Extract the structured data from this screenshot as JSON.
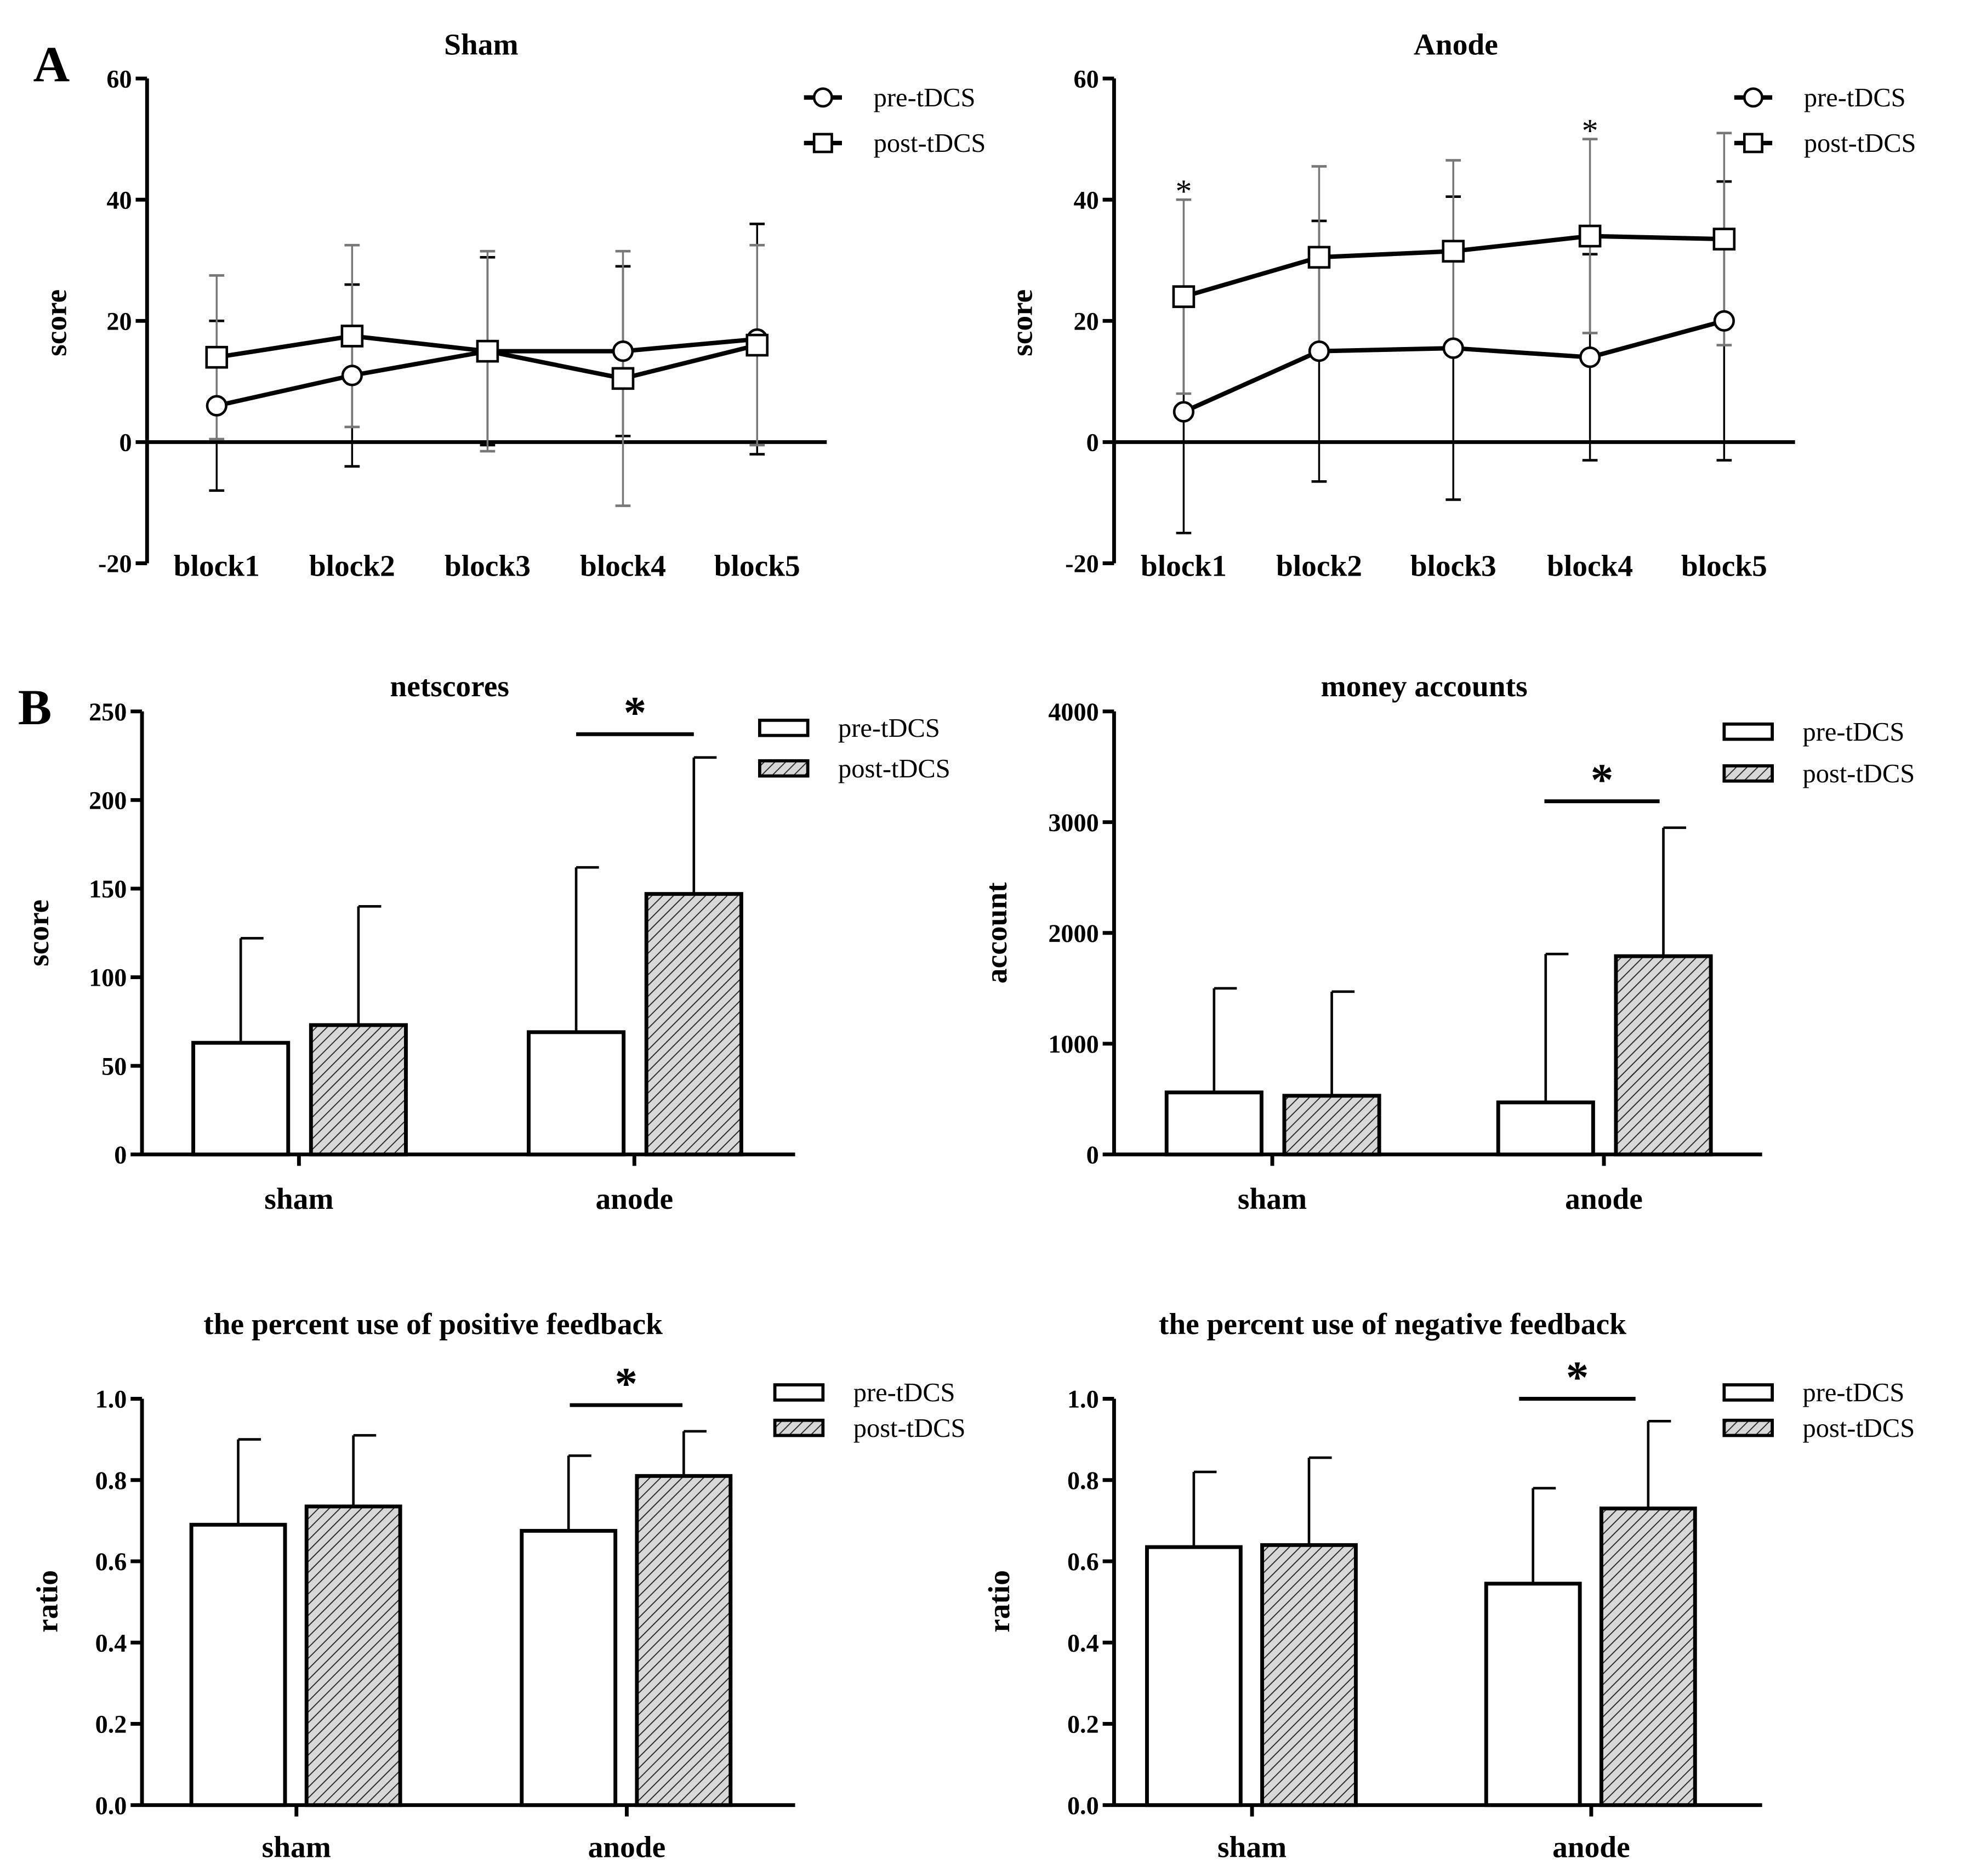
{
  "panel_labels": [
    "A",
    "B"
  ],
  "chart_data": [
    {
      "type": "line",
      "title": "Sham",
      "xlabel": "",
      "ylabel": "score",
      "categories": [
        "block1",
        "block2",
        "block3",
        "block4",
        "block5"
      ],
      "ylim": [
        -20,
        60
      ],
      "yticks": [
        -20,
        0,
        20,
        40,
        60
      ],
      "legend_position": "top-right",
      "series": [
        {
          "name": "pre-tDCS",
          "marker": "circle",
          "values": [
            6,
            11,
            15,
            15,
            17
          ],
          "errors": [
            14,
            15,
            15.5,
            14,
            19
          ]
        },
        {
          "name": "post-tDCS",
          "marker": "square",
          "values": [
            14,
            17.5,
            15,
            10.5,
            16
          ],
          "errors": [
            13.5,
            15,
            16.5,
            21,
            16.5
          ]
        }
      ],
      "annotations": []
    },
    {
      "type": "line",
      "title": "Anode",
      "xlabel": "",
      "ylabel": "score",
      "categories": [
        "block1",
        "block2",
        "block3",
        "block4",
        "block5"
      ],
      "ylim": [
        -20,
        60
      ],
      "yticks": [
        -20,
        0,
        20,
        40,
        60
      ],
      "legend_position": "top-right",
      "series": [
        {
          "name": "pre-tDCS",
          "marker": "circle",
          "values": [
            5,
            15,
            15.5,
            14,
            20
          ],
          "errors": [
            20,
            21.5,
            25,
            17,
            23
          ]
        },
        {
          "name": "post-tDCS",
          "marker": "square",
          "values": [
            24,
            30.5,
            31.5,
            34,
            33.5
          ],
          "errors": [
            16,
            15,
            15,
            16,
            17.5
          ]
        }
      ],
      "annotations": [
        {
          "text": "*",
          "category": "block1"
        },
        {
          "text": "*",
          "category": "block4"
        }
      ]
    },
    {
      "type": "bar",
      "title": "netscores",
      "xlabel": "",
      "ylabel": "score",
      "categories": [
        "sham",
        "anode"
      ],
      "ylim": [
        0,
        250
      ],
      "yticks": [
        0,
        50,
        100,
        150,
        200,
        250
      ],
      "legend_position": "top-right",
      "series": [
        {
          "name": "pre-tDCS",
          "values": [
            63,
            69
          ],
          "errors": [
            59,
            93
          ]
        },
        {
          "name": "post-tDCS",
          "values": [
            73,
            147
          ],
          "errors": [
            67,
            77
          ]
        }
      ],
      "significance": {
        "text": "*",
        "category": "anode"
      }
    },
    {
      "type": "bar",
      "title": "money accounts",
      "xlabel": "",
      "ylabel": "account",
      "categories": [
        "sham",
        "anode"
      ],
      "ylim": [
        0,
        4000
      ],
      "yticks": [
        0,
        1000,
        2000,
        3000,
        4000
      ],
      "legend_position": "top-right",
      "series": [
        {
          "name": "pre-tDCS",
          "values": [
            560,
            470
          ],
          "errors": [
            940,
            1340
          ]
        },
        {
          "name": "post-tDCS",
          "values": [
            530,
            1790
          ],
          "errors": [
            940,
            1160
          ]
        }
      ],
      "significance": {
        "text": "*",
        "category": "anode"
      }
    },
    {
      "type": "bar",
      "title": "the percent use of positive feedback",
      "xlabel": "",
      "ylabel": "ratio",
      "categories": [
        "sham",
        "anode"
      ],
      "ylim": [
        0,
        1
      ],
      "yticks": [
        "0.0",
        "0.2",
        "0.4",
        "0.6",
        "0.8",
        "1.0"
      ],
      "legend_position": "top-right",
      "series": [
        {
          "name": "pre-tDCS",
          "values": [
            0.69,
            0.675
          ],
          "errors": [
            0.21,
            0.185
          ]
        },
        {
          "name": "post-tDCS",
          "values": [
            0.735,
            0.81
          ],
          "errors": [
            0.175,
            0.11
          ]
        }
      ],
      "significance": {
        "text": "*",
        "category": "anode"
      }
    },
    {
      "type": "bar",
      "title": "the percent use of negative feedback",
      "xlabel": "",
      "ylabel": "ratio",
      "categories": [
        "sham",
        "anode"
      ],
      "ylim": [
        0,
        1
      ],
      "yticks": [
        "0.0",
        "0.2",
        "0.4",
        "0.6",
        "0.8",
        "1.0"
      ],
      "legend_position": "top-right",
      "series": [
        {
          "name": "pre-tDCS",
          "values": [
            0.635,
            0.545
          ],
          "errors": [
            0.185,
            0.235
          ]
        },
        {
          "name": "post-tDCS",
          "values": [
            0.64,
            0.73
          ],
          "errors": [
            0.215,
            0.215
          ]
        }
      ],
      "significance": {
        "text": "*",
        "category": "anode"
      }
    }
  ]
}
